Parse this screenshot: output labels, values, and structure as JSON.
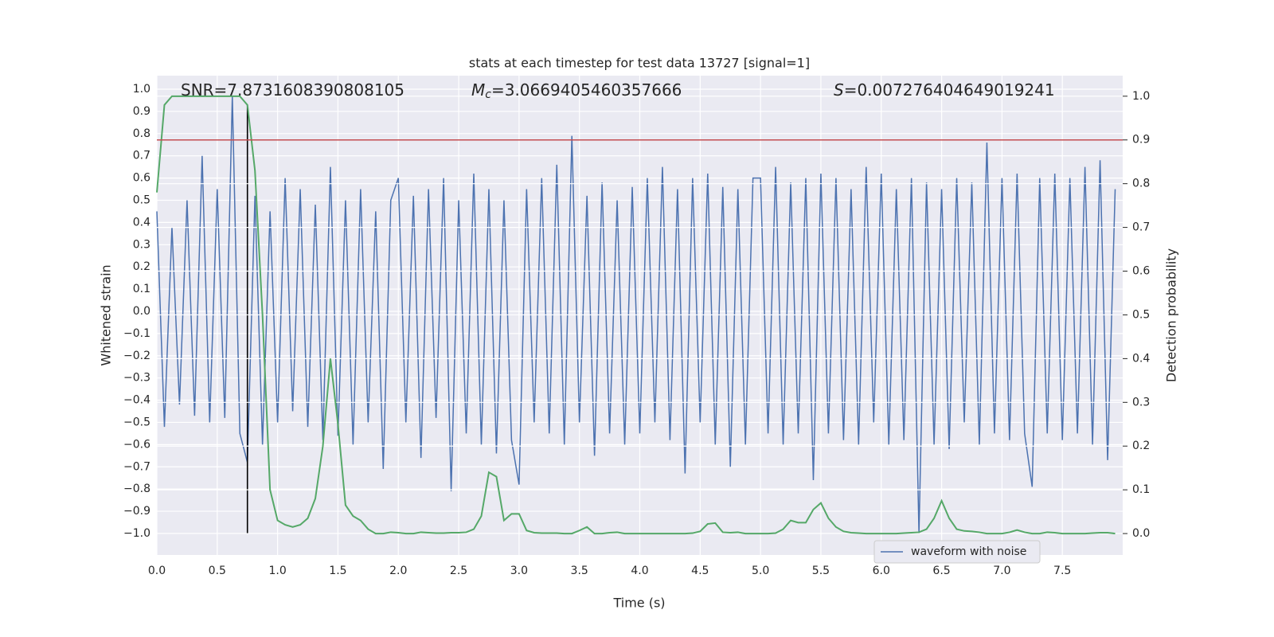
{
  "chart_data": {
    "type": "line",
    "title": "stats at each timestep for test data 13727 [signal=1]",
    "xlabel": "Time (s)",
    "ylabel": "Whitened strain",
    "y2label": "Detection probability",
    "annotations": [
      {
        "text": "SNR=7.8731608390808105"
      },
      {
        "italic": "M",
        "sub": "c",
        "text": "=3.0669405460357666"
      },
      {
        "italic": "S",
        "text": "=0.007276404649019241"
      }
    ],
    "x": [
      0,
      0.0625,
      0.125,
      0.1875,
      0.25,
      0.3125,
      0.375,
      0.4375,
      0.5,
      0.5625,
      0.625,
      0.6875,
      0.75,
      0.8125,
      0.875,
      0.9375,
      1,
      1.0625,
      1.125,
      1.1875,
      1.25,
      1.3125,
      1.375,
      1.4375,
      1.5,
      1.5625,
      1.625,
      1.6875,
      1.75,
      1.8125,
      1.875,
      1.9375,
      2,
      2.0625,
      2.125,
      2.1875,
      2.25,
      2.3125,
      2.375,
      2.4375,
      2.5,
      2.5625,
      2.625,
      2.6875,
      2.75,
      2.8125,
      2.875,
      2.9375,
      3,
      3.0625,
      3.125,
      3.1875,
      3.25,
      3.3125,
      3.375,
      3.4375,
      3.5,
      3.5625,
      3.625,
      3.6875,
      3.75,
      3.8125,
      3.875,
      3.9375,
      4,
      4.0625,
      4.125,
      4.1875,
      4.25,
      4.3125,
      4.375,
      4.4375,
      4.5,
      4.5625,
      4.625,
      4.6875,
      4.75,
      4.8125,
      4.875,
      4.9375,
      5,
      5.0625,
      5.125,
      5.1875,
      5.25,
      5.3125,
      5.375,
      5.4375,
      5.5,
      5.5625,
      5.625,
      5.6875,
      5.75,
      5.8125,
      5.875,
      5.9375,
      6,
      6.0625,
      6.125,
      6.1875,
      6.25,
      6.3125,
      6.375,
      6.4375,
      6.5,
      6.5625,
      6.625,
      6.6875,
      6.75,
      6.8125,
      6.875,
      6.9375,
      7,
      7.0625,
      7.125,
      7.1875,
      7.25,
      7.3125,
      7.375,
      7.4375,
      7.5,
      7.5625,
      7.625,
      7.6875,
      7.75,
      7.8125,
      7.875,
      7.9375
    ],
    "series": [
      {
        "name": "waveform with noise",
        "color": "#4c72b0",
        "axis": "y",
        "values": [
          0.45,
          -0.52,
          0.38,
          -0.42,
          0.5,
          -0.47,
          0.7,
          -0.5,
          0.55,
          -0.48,
          0.97,
          -0.55,
          -0.68,
          0.52,
          -0.6,
          0.45,
          -0.5,
          0.6,
          -0.45,
          0.55,
          -0.52,
          0.48,
          -0.58,
          0.65,
          -0.56,
          0.5,
          -0.6,
          0.55,
          -0.5,
          0.45,
          -0.71,
          0.5,
          0.6,
          -0.5,
          0.52,
          -0.66,
          0.55,
          -0.48,
          0.6,
          -0.81,
          0.5,
          -0.55,
          0.62,
          -0.6,
          0.55,
          -0.64,
          0.5,
          -0.58,
          -0.78,
          0.55,
          -0.5,
          0.6,
          -0.55,
          0.66,
          -0.6,
          0.79,
          -0.5,
          0.52,
          -0.65,
          0.58,
          -0.55,
          0.5,
          -0.6,
          0.56,
          -0.55,
          0.6,
          -0.5,
          0.65,
          -0.58,
          0.55,
          -0.73,
          0.6,
          -0.5,
          0.62,
          -0.6,
          0.56,
          -0.7,
          0.55,
          -0.6,
          0.6,
          0.6,
          -0.55,
          0.65,
          -0.6,
          0.58,
          -0.55,
          0.6,
          -0.76,
          0.62,
          -0.55,
          0.6,
          -0.58,
          0.55,
          -0.6,
          0.65,
          -0.5,
          0.62,
          -0.6,
          0.55,
          -0.58,
          0.6,
          -1.0,
          0.58,
          -0.6,
          0.55,
          -0.62,
          0.6,
          -0.5,
          0.58,
          -0.6,
          0.76,
          -0.55,
          0.6,
          -0.58,
          0.62,
          -0.55,
          -0.79,
          0.6,
          -0.55,
          0.62,
          -0.58,
          0.6,
          -0.55,
          0.65,
          -0.6,
          0.68,
          -0.67,
          0.55
        ]
      },
      {
        "color": "#55a868",
        "axis": "y2",
        "values": [
          0.78,
          0.98,
          1.0,
          1.0,
          1.0,
          1.0,
          1.0,
          1.0,
          1.0,
          1.0,
          1.0,
          1.0,
          0.98,
          0.83,
          0.5,
          0.1,
          0.03,
          0.02,
          0.015,
          0.02,
          0.035,
          0.08,
          0.2,
          0.4,
          0.25,
          0.065,
          0.04,
          0.03,
          0.01,
          0.0,
          0.0,
          0.003,
          0.002,
          0.0,
          0.0,
          0.003,
          0.002,
          0.001,
          0.001,
          0.002,
          0.002,
          0.003,
          0.01,
          0.04,
          0.14,
          0.13,
          0.03,
          0.045,
          0.045,
          0.007,
          0.002,
          0.001,
          0.001,
          0.001,
          0.0,
          0.0,
          0.007,
          0.015,
          0.0,
          0.0,
          0.002,
          0.003,
          0.0,
          0.0,
          0.0,
          0.0,
          0.0,
          0.0,
          0.0,
          0.0,
          0.0,
          0.001,
          0.005,
          0.022,
          0.024,
          0.003,
          0.002,
          0.003,
          0.0,
          0.0,
          0.0,
          0.0,
          0.001,
          0.01,
          0.03,
          0.025,
          0.025,
          0.055,
          0.07,
          0.035,
          0.015,
          0.005,
          0.002,
          0.001,
          0.0,
          0.0,
          0.0,
          0.0,
          0.0,
          0.001,
          0.002,
          0.003,
          0.01,
          0.035,
          0.075,
          0.035,
          0.01,
          0.006,
          0.005,
          0.003,
          0.0,
          0.0,
          0.0,
          0.003,
          0.008,
          0.003,
          0.0,
          0.0,
          0.003,
          0.002,
          0.0,
          0.0,
          0.0,
          0.0,
          0.001,
          0.002,
          0.002,
          0.0
        ]
      }
    ],
    "hlines": [
      {
        "value": 0.9,
        "axis": "y2",
        "color": "#c44e52"
      }
    ],
    "vlines": [
      {
        "x": 0.75,
        "ymin": -1.0,
        "ymax": 0.93,
        "color": "#000000"
      }
    ],
    "xlim": [
      0,
      8.0
    ],
    "ylim": [
      -1.097,
      1.061
    ],
    "y2lim": [
      -0.049,
      1.047
    ],
    "xticks": [
      {
        "value": 0,
        "label": "0.0"
      },
      {
        "value": 0.5,
        "label": "0.5"
      },
      {
        "value": 1,
        "label": "1.0"
      },
      {
        "value": 1.5,
        "label": "1.5"
      },
      {
        "value": 2,
        "label": "2.0"
      },
      {
        "value": 2.5,
        "label": "2.5"
      },
      {
        "value": 3,
        "label": "3.0"
      },
      {
        "value": 3.5,
        "label": "3.5"
      },
      {
        "value": 4,
        "label": "4.0"
      },
      {
        "value": 4.5,
        "label": "4.5"
      },
      {
        "value": 5,
        "label": "5.0"
      },
      {
        "value": 5.5,
        "label": "5.5"
      },
      {
        "value": 6,
        "label": "6.0"
      },
      {
        "value": 6.5,
        "label": "6.5"
      },
      {
        "value": 7,
        "label": "7.0"
      },
      {
        "value": 7.5,
        "label": "7.5"
      }
    ],
    "yticks": [
      {
        "value": -1,
        "label": "−1.0"
      },
      {
        "value": -0.9,
        "label": "−0.9"
      },
      {
        "value": -0.8,
        "label": "−0.8"
      },
      {
        "value": -0.7,
        "label": "−0.7"
      },
      {
        "value": -0.6,
        "label": "−0.6"
      },
      {
        "value": -0.5,
        "label": "−0.5"
      },
      {
        "value": -0.4,
        "label": "−0.4"
      },
      {
        "value": -0.3,
        "label": "−0.3"
      },
      {
        "value": -0.2,
        "label": "−0.2"
      },
      {
        "value": -0.1,
        "label": "−0.1"
      },
      {
        "value": 0,
        "label": "0.0"
      },
      {
        "value": 0.1,
        "label": "0.1"
      },
      {
        "value": 0.2,
        "label": "0.2"
      },
      {
        "value": 0.3,
        "label": "0.3"
      },
      {
        "value": 0.4,
        "label": "0.4"
      },
      {
        "value": 0.5,
        "label": "0.5"
      },
      {
        "value": 0.6,
        "label": "0.6"
      },
      {
        "value": 0.7,
        "label": "0.7"
      },
      {
        "value": 0.8,
        "label": "0.8"
      },
      {
        "value": 0.9,
        "label": "0.9"
      },
      {
        "value": 1,
        "label": "1.0"
      }
    ],
    "y2ticks": [
      {
        "value": 0,
        "label": "0.0"
      },
      {
        "value": 0.1,
        "label": "0.1"
      },
      {
        "value": 0.2,
        "label": "0.2"
      },
      {
        "value": 0.3,
        "label": "0.3"
      },
      {
        "value": 0.4,
        "label": "0.4"
      },
      {
        "value": 0.5,
        "label": "0.5"
      },
      {
        "value": 0.6,
        "label": "0.6"
      },
      {
        "value": 0.7,
        "label": "0.7"
      },
      {
        "value": 0.8,
        "label": "0.8"
      },
      {
        "value": 0.9,
        "label": "0.9"
      },
      {
        "value": 1,
        "label": "1.0"
      }
    ],
    "grid": true,
    "legend": "lower right"
  }
}
